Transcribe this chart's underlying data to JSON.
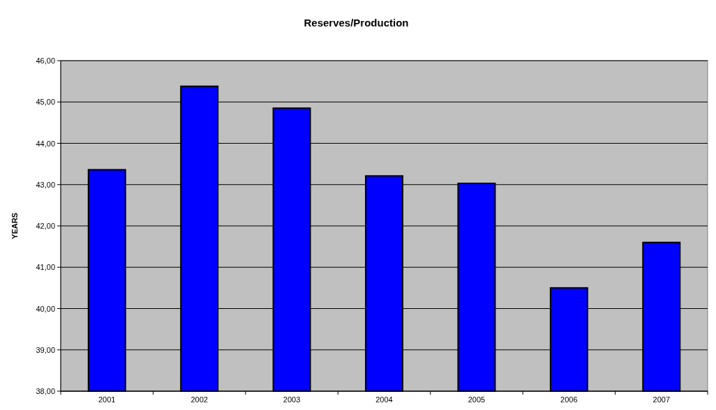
{
  "chart_data": {
    "type": "bar",
    "title": "Reserves/Production",
    "ylabel": "YEARS",
    "categories": [
      "2001",
      "2002",
      "2003",
      "2004",
      "2005",
      "2006",
      "2007"
    ],
    "values": [
      43.36,
      45.38,
      44.85,
      43.21,
      43.03,
      40.5,
      41.6
    ],
    "color": "#0000ff",
    "ylim": [
      38,
      46
    ],
    "yticks": [
      {
        "value": 38,
        "label": "38,00"
      },
      {
        "value": 39,
        "label": "39,00"
      },
      {
        "value": 40,
        "label": "40,00"
      },
      {
        "value": 41,
        "label": "41,00"
      },
      {
        "value": 42,
        "label": "42,00"
      },
      {
        "value": 43,
        "label": "43,00"
      },
      {
        "value": 44,
        "label": "44,00"
      },
      {
        "value": 45,
        "label": "45,00"
      },
      {
        "value": 46,
        "label": "46,00"
      }
    ],
    "grid": "y"
  }
}
